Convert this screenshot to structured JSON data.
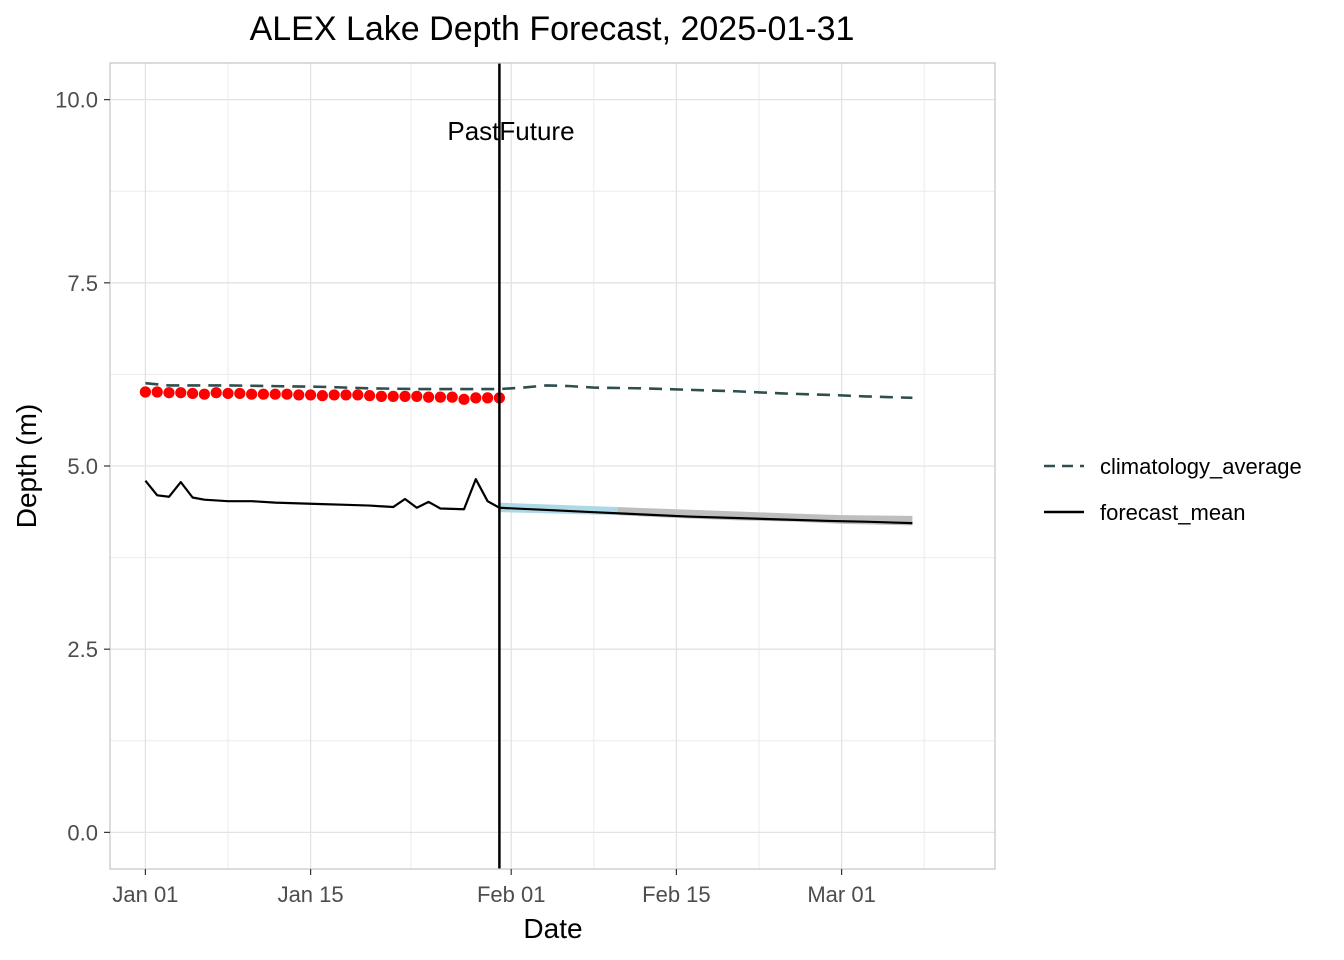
{
  "chart_data": {
    "type": "line",
    "title": "ALEX Lake Depth Forecast, 2025-01-31",
    "xlabel": "Date",
    "ylabel": "Depth (m)",
    "x_range": [
      "2024-12-29",
      "2025-03-14"
    ],
    "ylim": [
      -0.5,
      10.5
    ],
    "grid": true,
    "x_ticks": [
      {
        "date": "2025-01-01",
        "label": "Jan 01"
      },
      {
        "date": "2025-01-15",
        "label": "Jan 15"
      },
      {
        "date": "2025-02-01",
        "label": "Feb 01"
      },
      {
        "date": "2025-02-15",
        "label": "Feb 15"
      },
      {
        "date": "2025-03-01",
        "label": "Mar 01"
      }
    ],
    "y_ticks": [
      {
        "value": 0,
        "label": "0.0"
      },
      {
        "value": 2.5,
        "label": "2.5"
      },
      {
        "value": 5,
        "label": "5.0"
      },
      {
        "value": 7.5,
        "label": "7.5"
      },
      {
        "value": 10,
        "label": "10.0"
      }
    ],
    "forecast_date": "2025-01-31",
    "annotations": {
      "past": "Past",
      "future": "Future"
    },
    "legend_position": "right",
    "legend": [
      {
        "label": "climatology_average",
        "style": "dashed",
        "color": "#2f4f4f"
      },
      {
        "label": "forecast_mean",
        "style": "solid",
        "color": "#000000"
      }
    ],
    "colors": {
      "observations": "#ff0000",
      "climatology": "#2f4f4f",
      "forecast_mean": "#000000",
      "forecast_ci_near": "#add8e6",
      "forecast_ci_far": "#bebebe",
      "grid": "#ebebeb",
      "panel_border": "#c8c8c8",
      "vline": "#000000"
    },
    "series": [
      {
        "name": "observations",
        "kind": "points",
        "points": [
          [
            "2025-01-01",
            6.01
          ],
          [
            "2025-01-02",
            6.01
          ],
          [
            "2025-01-03",
            6.0
          ],
          [
            "2025-01-04",
            6.0
          ],
          [
            "2025-01-05",
            5.99
          ],
          [
            "2025-01-06",
            5.98
          ],
          [
            "2025-01-07",
            6.0
          ],
          [
            "2025-01-08",
            5.99
          ],
          [
            "2025-01-09",
            5.99
          ],
          [
            "2025-01-10",
            5.98
          ],
          [
            "2025-01-11",
            5.98
          ],
          [
            "2025-01-12",
            5.98
          ],
          [
            "2025-01-13",
            5.98
          ],
          [
            "2025-01-14",
            5.97
          ],
          [
            "2025-01-15",
            5.97
          ],
          [
            "2025-01-16",
            5.96
          ],
          [
            "2025-01-17",
            5.97
          ],
          [
            "2025-01-18",
            5.97
          ],
          [
            "2025-01-19",
            5.97
          ],
          [
            "2025-01-20",
            5.96
          ],
          [
            "2025-01-21",
            5.95
          ],
          [
            "2025-01-22",
            5.95
          ],
          [
            "2025-01-23",
            5.95
          ],
          [
            "2025-01-24",
            5.95
          ],
          [
            "2025-01-25",
            5.94
          ],
          [
            "2025-01-26",
            5.94
          ],
          [
            "2025-01-27",
            5.94
          ],
          [
            "2025-01-28",
            5.91
          ],
          [
            "2025-01-29",
            5.93
          ],
          [
            "2025-01-30",
            5.93
          ],
          [
            "2025-01-31",
            5.93
          ]
        ]
      },
      {
        "name": "climatology_average",
        "kind": "line",
        "style": "dashed",
        "points": [
          [
            "2025-01-01",
            6.13
          ],
          [
            "2025-01-03",
            6.1
          ],
          [
            "2025-01-05",
            6.1
          ],
          [
            "2025-01-08",
            6.1
          ],
          [
            "2025-01-12",
            6.09
          ],
          [
            "2025-01-16",
            6.08
          ],
          [
            "2025-01-20",
            6.06
          ],
          [
            "2025-01-24",
            6.05
          ],
          [
            "2025-01-28",
            6.05
          ],
          [
            "2025-01-31",
            6.05
          ],
          [
            "2025-02-02",
            6.07
          ],
          [
            "2025-02-04",
            6.1
          ],
          [
            "2025-02-06",
            6.09
          ],
          [
            "2025-02-08",
            6.07
          ],
          [
            "2025-02-12",
            6.06
          ],
          [
            "2025-02-16",
            6.04
          ],
          [
            "2025-02-20",
            6.02
          ],
          [
            "2025-02-24",
            5.99
          ],
          [
            "2025-02-28",
            5.97
          ],
          [
            "2025-03-03",
            5.95
          ],
          [
            "2025-03-07",
            5.93
          ]
        ]
      },
      {
        "name": "forecast_mean",
        "kind": "line",
        "style": "solid",
        "points": [
          [
            "2025-01-01",
            4.8
          ],
          [
            "2025-01-02",
            4.6
          ],
          [
            "2025-01-03",
            4.58
          ],
          [
            "2025-01-04",
            4.78
          ],
          [
            "2025-01-05",
            4.57
          ],
          [
            "2025-01-06",
            4.54
          ],
          [
            "2025-01-07",
            4.53
          ],
          [
            "2025-01-08",
            4.52
          ],
          [
            "2025-01-10",
            4.52
          ],
          [
            "2025-01-12",
            4.5
          ],
          [
            "2025-01-14",
            4.49
          ],
          [
            "2025-01-16",
            4.48
          ],
          [
            "2025-01-18",
            4.47
          ],
          [
            "2025-01-20",
            4.46
          ],
          [
            "2025-01-22",
            4.44
          ],
          [
            "2025-01-23",
            4.55
          ],
          [
            "2025-01-24",
            4.43
          ],
          [
            "2025-01-25",
            4.51
          ],
          [
            "2025-01-26",
            4.42
          ],
          [
            "2025-01-28",
            4.41
          ],
          [
            "2025-01-29",
            4.82
          ],
          [
            "2025-01-30",
            4.52
          ],
          [
            "2025-01-31",
            4.43
          ],
          [
            "2025-02-04",
            4.4
          ],
          [
            "2025-02-08",
            4.37
          ],
          [
            "2025-02-12",
            4.34
          ],
          [
            "2025-02-16",
            4.31
          ],
          [
            "2025-02-20",
            4.29
          ],
          [
            "2025-02-24",
            4.27
          ],
          [
            "2025-02-28",
            4.25
          ],
          [
            "2025-03-03",
            4.24
          ],
          [
            "2025-03-07",
            4.22
          ]
        ]
      },
      {
        "name": "forecast_interval",
        "kind": "ribbon",
        "points": [
          [
            "2025-01-31",
            4.37,
            4.5
          ],
          [
            "2025-02-05",
            4.35,
            4.47
          ],
          [
            "2025-02-10",
            4.33,
            4.44
          ],
          [
            "2025-02-15",
            4.29,
            4.41
          ],
          [
            "2025-02-20",
            4.26,
            4.38
          ],
          [
            "2025-02-25",
            4.24,
            4.35
          ],
          [
            "2025-03-01",
            4.21,
            4.33
          ],
          [
            "2025-03-07",
            4.19,
            4.32
          ]
        ],
        "near_until": "2025-02-10"
      }
    ]
  }
}
